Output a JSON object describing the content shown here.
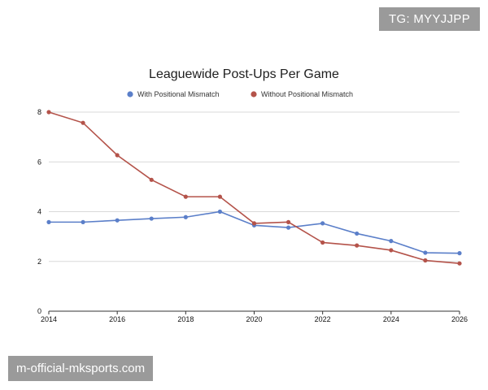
{
  "watermark_top": "TG: MYYJJPP",
  "watermark_bottom": "m-official-mksports.com",
  "chart_data": {
    "type": "line",
    "title": "Leaguewide Post-Ups Per Game",
    "xlabel": "",
    "ylabel": "",
    "x": [
      2014,
      2015,
      2016,
      2017,
      2018,
      2019,
      2020,
      2021,
      2022,
      2023,
      2024,
      2025,
      2026
    ],
    "xticks": [
      2014,
      2016,
      2018,
      2020,
      2022,
      2024,
      2026
    ],
    "yticks": [
      0,
      2,
      4,
      6,
      8
    ],
    "xlim": [
      2014,
      2026
    ],
    "ylim": [
      0,
      8
    ],
    "grid": true,
    "legend_position": "top",
    "series": [
      {
        "name": "With Positional Mismatch",
        "color": "#5b7fc9",
        "values": [
          3.58,
          3.58,
          3.65,
          3.72,
          3.78,
          4.0,
          3.45,
          3.36,
          3.53,
          3.12,
          2.82,
          2.35,
          2.33
        ]
      },
      {
        "name": "Without Positional Mismatch",
        "color": "#b4534a",
        "values": [
          8.0,
          7.57,
          6.27,
          5.28,
          4.6,
          4.6,
          3.53,
          3.58,
          2.76,
          2.64,
          2.45,
          2.04,
          1.92
        ]
      }
    ]
  }
}
